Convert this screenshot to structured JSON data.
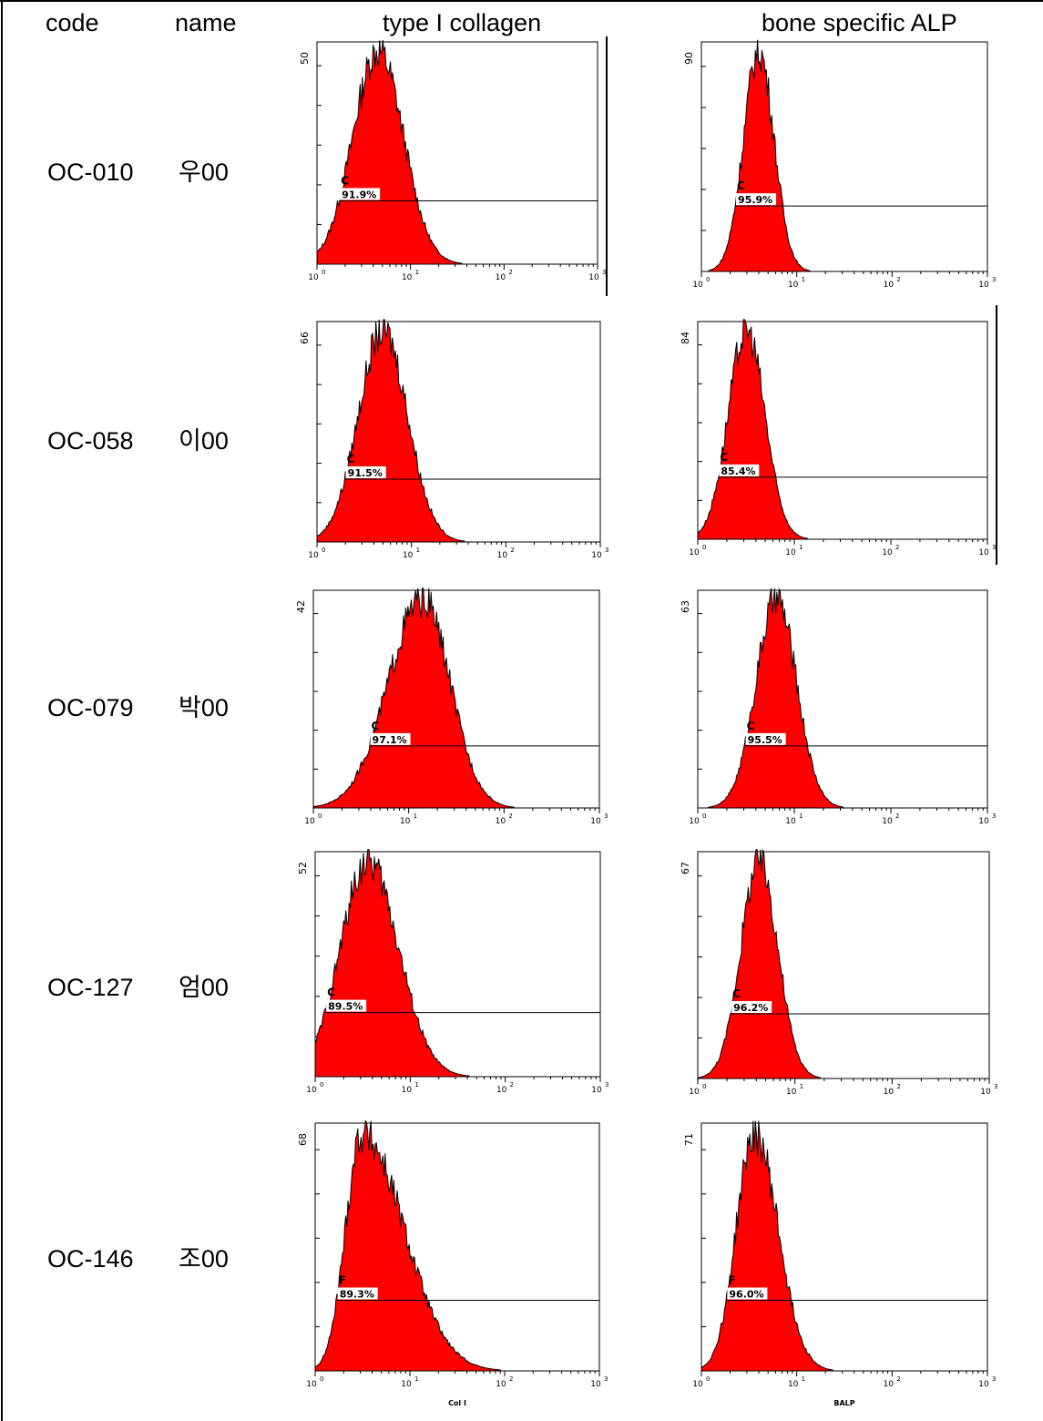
{
  "headers": {
    "code": "code",
    "name": "name",
    "col1": "type I collagen",
    "col2": "bone specific ALP"
  },
  "colors": {
    "histogram_fill": "#ff0000",
    "histogram_edge": "#000000",
    "gate_label_bg": "#ffffff"
  },
  "x_axis": {
    "scale": "log",
    "ticks": [
      "10^0",
      "10^1",
      "10^2",
      "10^3"
    ],
    "tick_display": [
      {
        "base": "10",
        "exp": "0"
      },
      {
        "base": "10",
        "exp": "1"
      },
      {
        "base": "10",
        "exp": "2"
      },
      {
        "base": "10",
        "exp": "3"
      }
    ]
  },
  "rows": [
    {
      "code": "OC-010",
      "name": "우00"
    },
    {
      "code": "OC-058",
      "name": "이00"
    },
    {
      "code": "OC-079",
      "name": "박00"
    },
    {
      "code": "OC-127",
      "name": "엄00"
    },
    {
      "code": "OC-146",
      "name": "조00"
    }
  ],
  "chart_data": [
    {
      "type": "area",
      "row": "OC-010",
      "column": "type I collagen",
      "ymax_label": "50",
      "gate": "C",
      "gate_percent": "91.9%",
      "x_scale": "log",
      "xlim": [
        1,
        1000
      ],
      "peak_x": 4.5,
      "spread": 0.27,
      "skew": 1.0,
      "xlabel": ""
    },
    {
      "type": "area",
      "row": "OC-010",
      "column": "bone specific ALP",
      "ymax_label": "90",
      "gate": "C",
      "gate_percent": "95.9%",
      "x_scale": "log",
      "xlim": [
        1,
        1000
      ],
      "peak_x": 4.0,
      "spread": 0.16,
      "skew": 1.0,
      "xlabel": ""
    },
    {
      "type": "area",
      "row": "OC-058",
      "column": "type I collagen",
      "ymax_label": "66",
      "gate": "C",
      "gate_percent": "91.5%",
      "x_scale": "log",
      "xlim": [
        1,
        1000
      ],
      "peak_x": 5.0,
      "spread": 0.26,
      "skew": 1.0,
      "xlabel": ""
    },
    {
      "type": "area",
      "row": "OC-058",
      "column": "bone specific ALP",
      "ymax_label": "84",
      "gate": "C",
      "gate_percent": "85.4%",
      "x_scale": "log",
      "xlim": [
        1,
        1000
      ],
      "peak_x": 3.2,
      "spread": 0.19,
      "skew": 1.0,
      "xlabel": ""
    },
    {
      "type": "area",
      "row": "OC-079",
      "column": "type I collagen",
      "ymax_label": "42",
      "gate": "C",
      "gate_percent": "97.1%",
      "x_scale": "log",
      "xlim": [
        1,
        1000
      ],
      "peak_x": 14.0,
      "spread": 0.36,
      "skew": 0.8,
      "xlabel": ""
    },
    {
      "type": "area",
      "row": "OC-079",
      "column": "bone specific ALP",
      "ymax_label": "63",
      "gate": "C",
      "gate_percent": "95.5%",
      "x_scale": "log",
      "xlim": [
        1,
        1000
      ],
      "peak_x": 6.5,
      "spread": 0.21,
      "skew": 1.0,
      "xlabel": ""
    },
    {
      "type": "area",
      "row": "OC-127",
      "column": "type I collagen",
      "ymax_label": "52",
      "gate": "C",
      "gate_percent": "89.5%",
      "x_scale": "log",
      "xlim": [
        1,
        1000
      ],
      "peak_x": 3.6,
      "spread": 0.29,
      "skew": 1.1,
      "xlabel": ""
    },
    {
      "type": "area",
      "row": "OC-127",
      "column": "bone specific ALP",
      "ymax_label": "67",
      "gate": "C",
      "gate_percent": "96.2%",
      "x_scale": "log",
      "xlim": [
        1,
        1000
      ],
      "peak_x": 4.3,
      "spread": 0.19,
      "skew": 1.0,
      "xlabel": ""
    },
    {
      "type": "area",
      "row": "OC-146",
      "column": "type I collagen",
      "ymax_label": "68",
      "gate": "F",
      "gate_percent": "89.3%",
      "x_scale": "log",
      "xlim": [
        1,
        1000
      ],
      "peak_x": 3.1,
      "spread": 0.17,
      "skew": 2.6,
      "xlabel": "Col I"
    },
    {
      "type": "area",
      "row": "OC-146",
      "column": "bone specific ALP",
      "ymax_label": "71",
      "gate": "F",
      "gate_percent": "96.0%",
      "x_scale": "log",
      "xlim": [
        1,
        1000
      ],
      "peak_x": 3.6,
      "spread": 0.19,
      "skew": 1.3,
      "xlabel": "BALP"
    }
  ]
}
